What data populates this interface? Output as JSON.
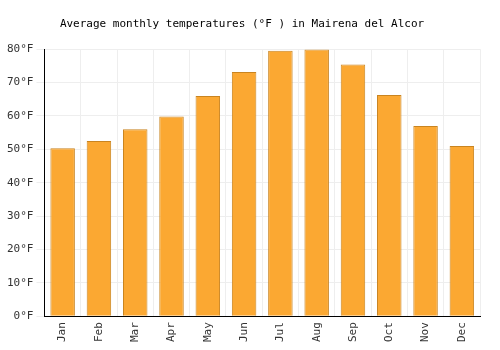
{
  "chart_data": {
    "type": "bar",
    "title": "Average monthly temperatures (°F ) in Mairena del Alcor",
    "categories": [
      "Jan",
      "Feb",
      "Mar",
      "Apr",
      "May",
      "Jun",
      "Jul",
      "Aug",
      "Sep",
      "Oct",
      "Nov",
      "Dec"
    ],
    "values": [
      50.3,
      52.5,
      56,
      59.8,
      66,
      73.2,
      79.5,
      79.9,
      75.4,
      66.3,
      57,
      51
    ],
    "color": "#fba832",
    "ylim": [
      0,
      80
    ],
    "yticks": [
      {
        "value": 0,
        "label": "0°F"
      },
      {
        "value": 10,
        "label": "10°F"
      },
      {
        "value": 20,
        "label": "20°F"
      },
      {
        "value": 30,
        "label": "30°F"
      },
      {
        "value": 40,
        "label": "40°F"
      },
      {
        "value": 50,
        "label": "50°F"
      },
      {
        "value": 60,
        "label": "60°F"
      },
      {
        "value": 70,
        "label": "70°F"
      },
      {
        "value": 80,
        "label": "80°F"
      }
    ],
    "grid": true
  }
}
